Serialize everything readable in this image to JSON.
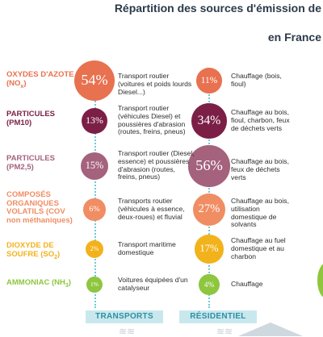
{
  "title_line1": "Répartition des sources d'émission de",
  "title_line2": "en France",
  "chart_data": {
    "type": "bubble-table",
    "columns": [
      "TRANSPORTS",
      "RÉSIDENTIEL"
    ],
    "rows": [
      {
        "pollutant": "OXYDES D'AZOTE (NOx)",
        "color": "#e8714f",
        "transport_label": "54%",
        "transport_value": 54,
        "transport_desc": "Transport routier (voitures et poids lourds Diesel...)",
        "res_label": "11%",
        "res_value": 11,
        "res_desc": "Chauffage (bois, fioul)"
      },
      {
        "pollutant": "PARTICULES (PM10)",
        "color": "#7b1f46",
        "transport_label": "13%",
        "transport_value": 13,
        "transport_desc": "Transport routier (véhicules Diesel) et poussières d'abrasion (routes, freins, pneus)",
        "res_label": "34%",
        "res_value": 34,
        "res_desc": "Chauffage au bois, fioul, charbon, feux de déchets verts"
      },
      {
        "pollutant": "PARTICULES (PM2,5)",
        "color": "#a4627d",
        "transport_label": "15%",
        "transport_value": 15,
        "transport_desc": "Transport routier (Diesel, essence) et poussières d'abrasion (routes, freins, pneus)",
        "res_label": "56%",
        "res_value": 56,
        "res_desc": "Chauffage au bois, feux de déchets verts"
      },
      {
        "pollutant": "COMPOSÉS ORGANIQUES VOLATILS (COV non méthaniques)",
        "color": "#f08d63",
        "transport_label": "6%",
        "transport_value": 6,
        "transport_desc": "Transports routier (véhicules à essence, deux-roues) et fluvial",
        "res_label": "27%",
        "res_value": 27,
        "res_desc": "Chauffage au bois, utilisation domestique de solvants"
      },
      {
        "pollutant": "DIOXYDE DE SOUFRE (SO2)",
        "color": "#f2b21b",
        "transport_label": "2%",
        "transport_value": 2,
        "transport_desc": "Transport maritime domestique",
        "res_label": "17%",
        "res_value": 17,
        "res_desc": "Chauffage au fuel domestique et au charbon"
      },
      {
        "pollutant": "AMMONIAC (NH3)",
        "color": "#8ec63f",
        "transport_label": "1%",
        "transport_value": 1,
        "transport_desc": "Voitures équipées d'un catalyseur",
        "res_label": "4%",
        "res_value": 4,
        "res_desc": "Chauffage"
      }
    ]
  }
}
